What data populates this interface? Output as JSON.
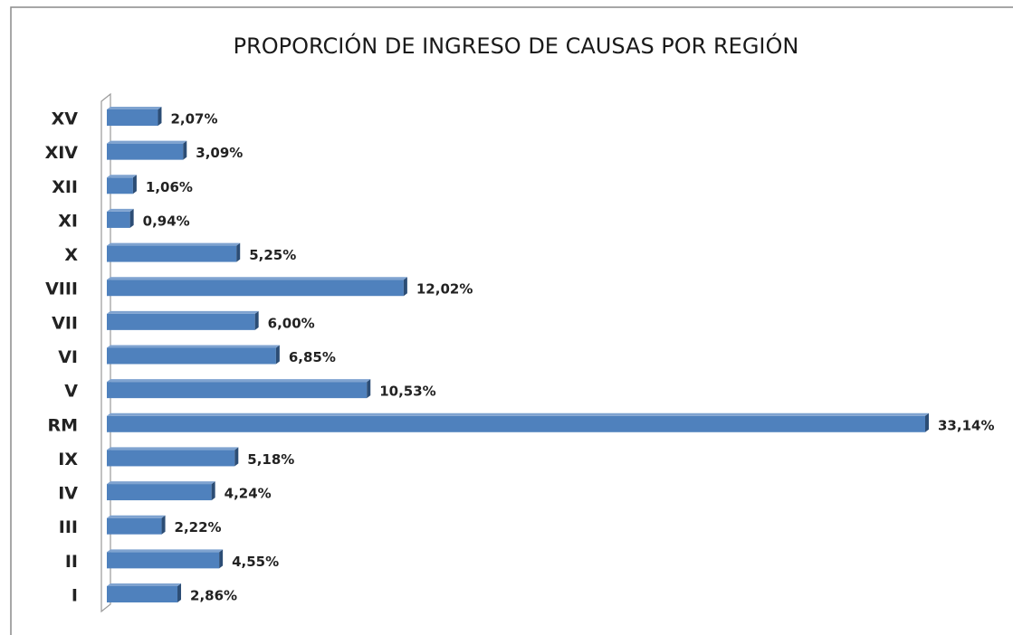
{
  "chart_data": {
    "type": "bar",
    "orientation": "horizontal",
    "title": "PROPORCIÓN DE INGRESO DE CAUSAS POR REGIÓN",
    "categories": [
      "XV",
      "XIV",
      "XII",
      "XI",
      "X",
      "VIII",
      "VII",
      "VI",
      "V",
      "RM",
      "IX",
      "IV",
      "III",
      "II",
      "I"
    ],
    "values": [
      2.07,
      3.09,
      1.06,
      0.94,
      5.25,
      12.02,
      6.0,
      6.85,
      10.53,
      33.14,
      5.18,
      4.24,
      2.22,
      4.55,
      2.86
    ],
    "value_labels": [
      "2,07%",
      "3,09%",
      "1,06%",
      "0,94%",
      "5,25%",
      "12,02%",
      "6,00%",
      "6,85%",
      "10,53%",
      "33,14%",
      "5,18%",
      "4,24%",
      "2,22%",
      "4,55%",
      "2,86%"
    ],
    "color": "#4f81bd"
  }
}
